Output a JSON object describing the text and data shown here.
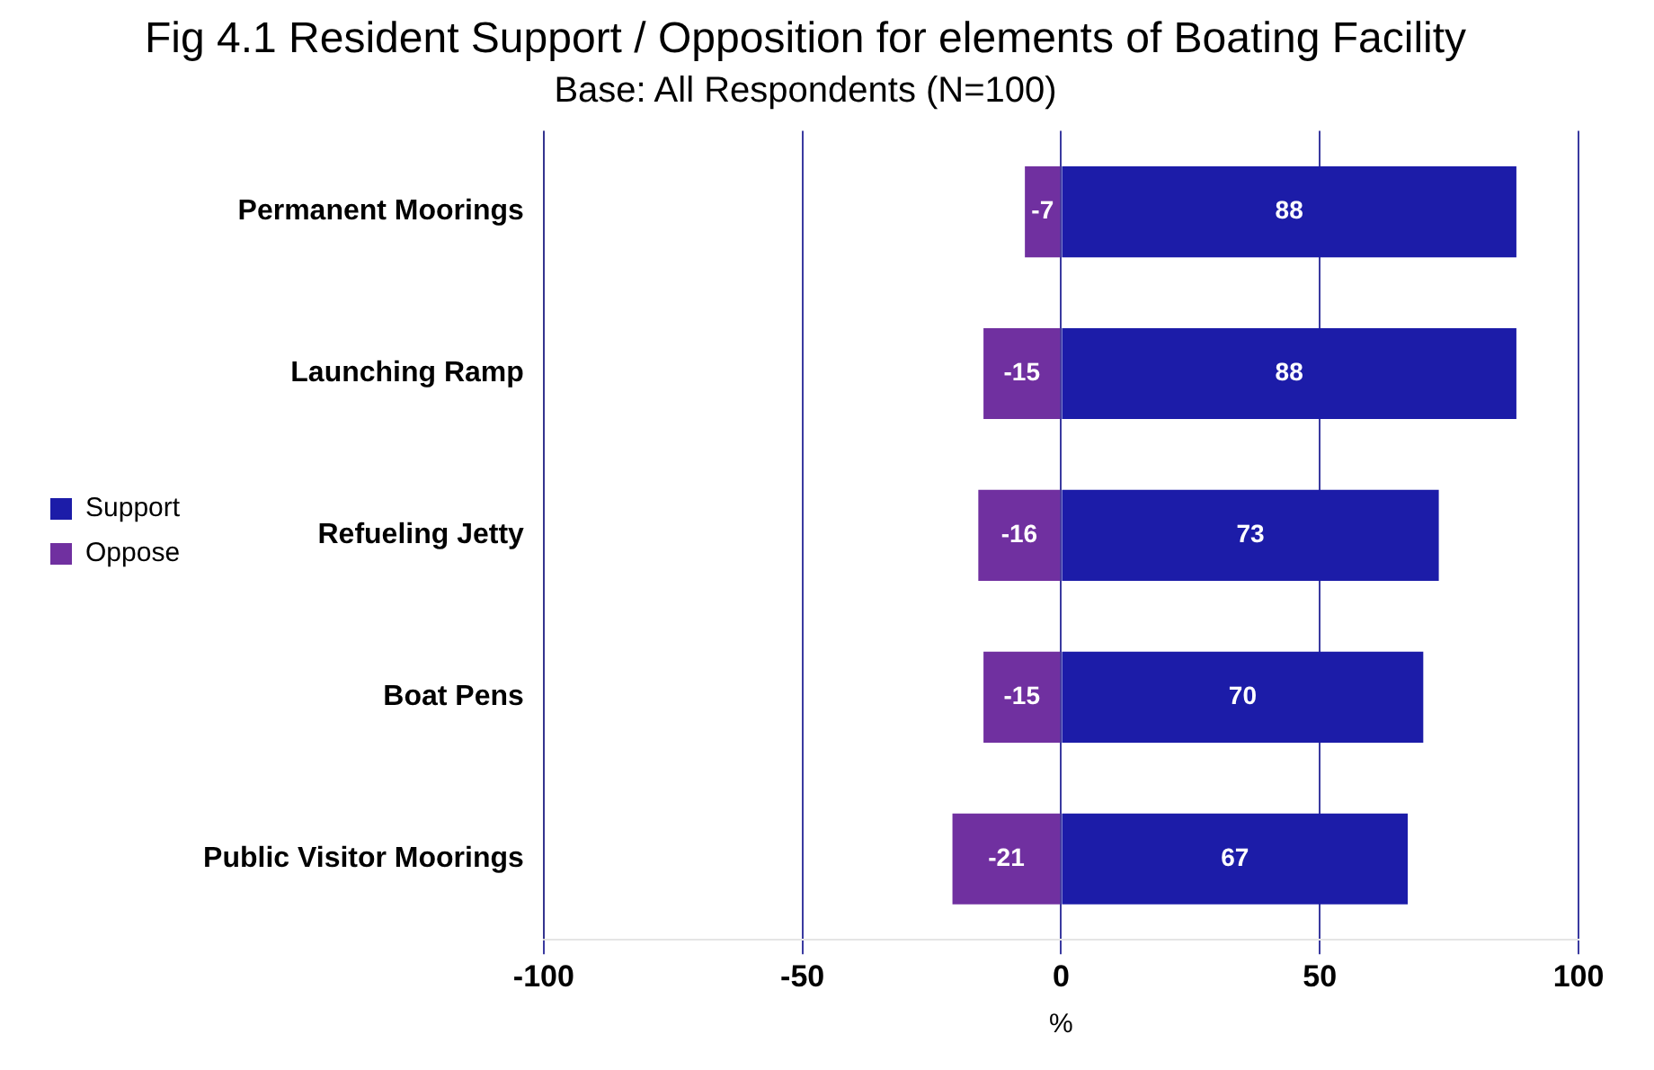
{
  "chart_data": {
    "type": "bar",
    "orientation": "horizontal",
    "stacked": true,
    "title": "Fig 4.1 Resident Support / Opposition for elements of Boating Facility",
    "subtitle": "Base: All Respondents (N=100)",
    "xlabel": "%",
    "categories": [
      "Permanent Moorings",
      "Launching Ramp",
      "Refueling Jetty",
      "Boat Pens",
      "Public Visitor Moorings"
    ],
    "series": [
      {
        "name": "Support",
        "color": "#1c1ca8",
        "values": [
          88,
          88,
          73,
          70,
          67
        ]
      },
      {
        "name": "Oppose",
        "color": "#7030a0",
        "values": [
          -7,
          -15,
          -16,
          -15,
          -21
        ]
      }
    ],
    "xlim": [
      -100,
      100
    ],
    "xticks": [
      -100,
      -50,
      0,
      50,
      100
    ],
    "grid": "x",
    "legend": "left",
    "data_labels": true
  }
}
